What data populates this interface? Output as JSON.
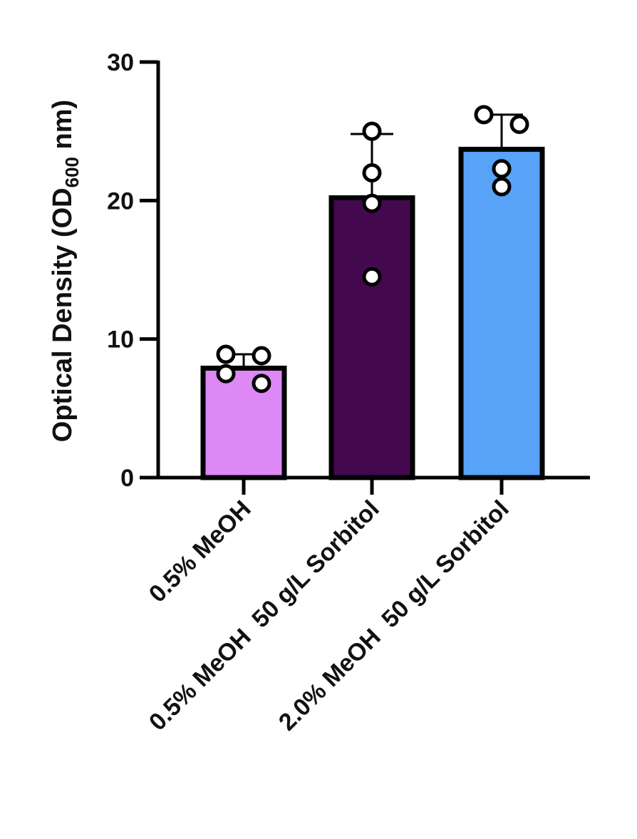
{
  "chart_data": {
    "type": "bar",
    "title": "",
    "xlabel": "",
    "ylabel": {
      "prefix": "Optical Density (OD",
      "subscript": "600",
      "suffix": " nm)"
    },
    "ylim": [
      0,
      30
    ],
    "yticks": [
      "0",
      "10",
      "20",
      "30"
    ],
    "ytick_values": [
      0,
      10,
      20,
      30
    ],
    "grid": false,
    "legend": "none",
    "categories": [
      "0.5% MeOH",
      "0.5% MeOH  50 g/L Sorbitol",
      "2.0% MeOH  50 g/L Sorbitol"
    ],
    "values": [
      7.9,
      20.2,
      23.7
    ],
    "error_upper": [
      8.9,
      24.8,
      26.2
    ],
    "points": [
      [
        8.9,
        8.8,
        7.5,
        6.8
      ],
      [
        25.0,
        22.0,
        19.8,
        14.5
      ],
      [
        26.2,
        25.5,
        22.3,
        21.0
      ]
    ],
    "colors": [
      "#dd88f5",
      "#44084f",
      "#58a2f8"
    ]
  }
}
